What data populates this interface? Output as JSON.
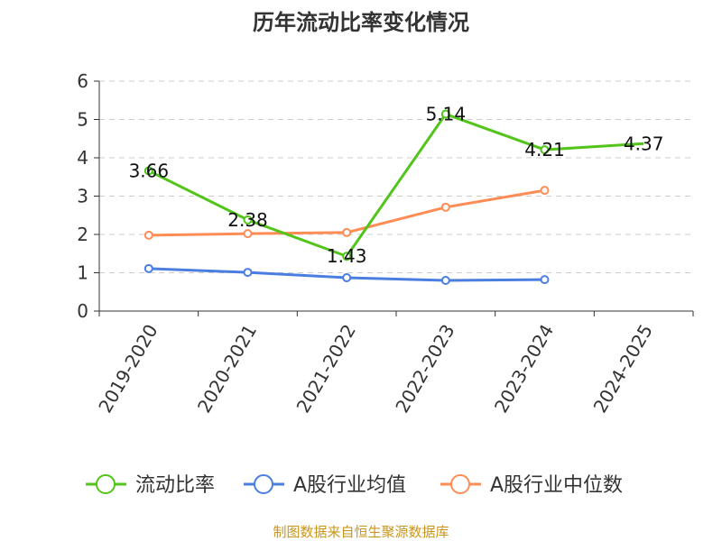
{
  "chart_data": {
    "type": "line",
    "title": "历年流动比率变化情况",
    "categories": [
      "2019-2020",
      "2020-2021",
      "2021-2022",
      "2022-2023",
      "2023-2024",
      "2024-2025"
    ],
    "ylim": [
      0,
      6
    ],
    "yticks": [
      "0",
      "1",
      "2",
      "3",
      "4",
      "5",
      "6"
    ],
    "grid": true,
    "legend_position": "bottom",
    "series": [
      {
        "name": "流动比率",
        "color": "#52c41a",
        "values": [
          3.66,
          2.38,
          1.43,
          5.14,
          4.21,
          4.37
        ],
        "labels": [
          "3.66",
          "2.38",
          "1.43",
          "5.14",
          "4.21",
          "4.37"
        ]
      },
      {
        "name": "A股行业均值",
        "color": "#4a7ee0",
        "values": [
          1.11,
          1.01,
          0.87,
          0.8,
          0.82,
          null
        ]
      },
      {
        "name": "A股行业中位数",
        "color": "#ff8c55",
        "values": [
          1.98,
          2.02,
          2.05,
          2.71,
          3.15,
          null
        ]
      }
    ],
    "source": "制图数据来自恒生聚源数据库"
  }
}
